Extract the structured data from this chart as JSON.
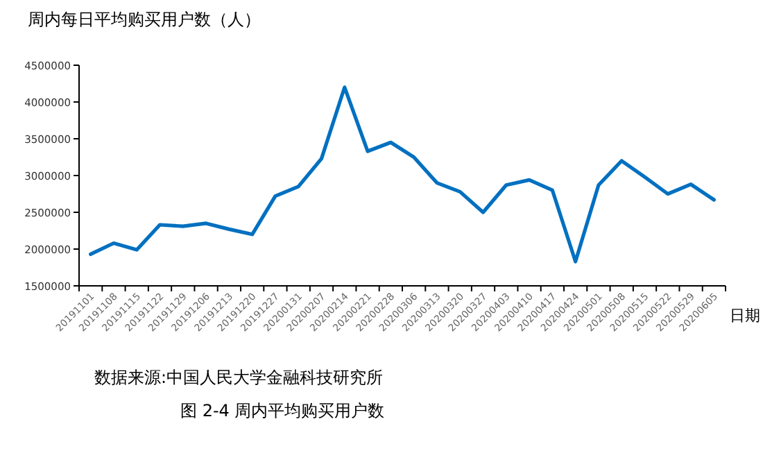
{
  "chart_data": {
    "type": "line",
    "ylabel": "周内每日平均购买用户数（人）",
    "xlabel": "日期",
    "annotations": [
      "数据来源:中国人民大学金融科技研究所",
      "图 2-4    周内平均购买用户数"
    ],
    "categories": [
      "20191101",
      "20191108",
      "20191115",
      "20191122",
      "20191129",
      "20191206",
      "20191213",
      "20191220",
      "20191227",
      "20200131",
      "20200207",
      "20200214",
      "20200221",
      "20200228",
      "20200306",
      "20200313",
      "20200320",
      "20200327",
      "20200403",
      "20200410",
      "20200417",
      "20200424",
      "20200501",
      "20200508",
      "20200515",
      "20200522",
      "20200529",
      "20200605"
    ],
    "series": [
      {
        "color": "#0070c0",
        "values": [
          1930000,
          2080000,
          1990000,
          2330000,
          2310000,
          2350000,
          2270000,
          2200000,
          2720000,
          2850000,
          3230000,
          4200000,
          3330000,
          3450000,
          3250000,
          2900000,
          2780000,
          2500000,
          2870000,
          2940000,
          2800000,
          1830000,
          2870000,
          3200000,
          2980000,
          2750000,
          2880000,
          2670000
        ]
      }
    ],
    "ylim": [
      1500000,
      4500000
    ],
    "yticks": [
      1500000,
      2000000,
      2500000,
      3000000,
      3500000,
      4000000,
      4500000
    ],
    "grid": false,
    "marker": "none",
    "line_style": "solid"
  }
}
